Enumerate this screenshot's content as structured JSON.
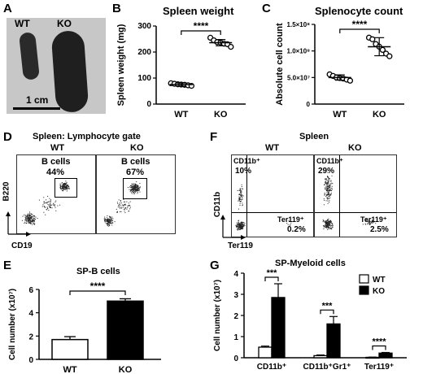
{
  "panels": {
    "A": "A",
    "B": "B",
    "C": "C",
    "D": "D",
    "E": "E",
    "F": "F",
    "G": "G"
  },
  "photo": {
    "wt": "WT",
    "ko": "KO",
    "scale": "1 cm"
  },
  "chart_data": [
    {
      "id": "B",
      "type": "scatter",
      "title": "Spleen weight",
      "xlabel": "",
      "ylabel": "Spleen weight (mg)",
      "categories": [
        "WT",
        "KO"
      ],
      "ylim": [
        0,
        300
      ],
      "yticks": [
        0,
        100,
        200,
        300
      ],
      "grid": false,
      "points": {
        "WT": [
          80,
          78,
          76,
          75,
          74,
          72,
          70
        ],
        "KO": [
          255,
          245,
          238,
          236,
          232,
          230,
          220
        ]
      },
      "means": [
        75,
        236
      ],
      "sem": [
        6,
        12
      ],
      "significance": "****"
    },
    {
      "id": "C",
      "type": "scatter",
      "title": "Splenocyte count",
      "xlabel": "",
      "ylabel": "Absolute cell count",
      "categories": [
        "WT",
        "KO"
      ],
      "ylim": [
        0,
        150000000
      ],
      "ytick_labels": [
        "0",
        "5.0×10⁷",
        "1.0×10⁸",
        "1.5×10⁸"
      ],
      "grid": false,
      "points": {
        "WT": [
          56000000,
          53000000,
          50000000,
          49000000,
          48000000,
          46000000,
          44000000
        ],
        "KO": [
          125000000,
          122000000,
          113000000,
          108000000,
          102000000,
          95000000,
          90000000
        ]
      },
      "means": [
        50000000,
        108000000
      ],
      "sem": [
        5000000,
        17000000
      ],
      "significance": "****"
    },
    {
      "id": "E",
      "type": "bar",
      "title": "SP-B cells",
      "xlabel": "",
      "ylabel": "Cell number (x10⁷)",
      "categories": [
        "WT",
        "KO"
      ],
      "values": [
        1.7,
        5.0
      ],
      "errors": [
        0.25,
        0.2
      ],
      "ylim": [
        0,
        6
      ],
      "yticks": [
        0,
        2,
        4,
        6
      ],
      "colors": [
        "#ffffff",
        "#000000"
      ],
      "significance": "****"
    },
    {
      "id": "G",
      "type": "bar",
      "title": "SP-Myeloid cells",
      "xlabel": "",
      "ylabel": "Cell number (x10⁷)",
      "categories": [
        "CD11b⁺",
        "CD11b⁺Gr1⁺",
        "Ter119⁺"
      ],
      "series": [
        {
          "name": "WT",
          "values": [
            0.5,
            0.1,
            0.02
          ],
          "errors": [
            0.05,
            0.03,
            0.01
          ],
          "color": "#ffffff"
        },
        {
          "name": "KO",
          "values": [
            2.85,
            1.6,
            0.22
          ],
          "errors": [
            0.65,
            0.35,
            0.03
          ],
          "color": "#000000"
        }
      ],
      "ylim": [
        0,
        4
      ],
      "yticks": [
        0,
        1,
        2,
        3,
        4
      ],
      "legend": "top-right",
      "significance": [
        "***",
        "***",
        "****"
      ]
    }
  ],
  "panelD": {
    "title": "Spleen: Lymphocyte gate",
    "wt": "WT",
    "ko": "KO",
    "gate_label": "B cells",
    "wt_pct": "44%",
    "ko_pct": "67%",
    "ylabel": "B220",
    "xlabel": "CD19"
  },
  "panelF": {
    "title": "Spleen",
    "wt": "WT",
    "ko": "KO",
    "cd11b_label": "CD11b⁺",
    "wt_cd11b": "10%",
    "ko_cd11b": "29%",
    "ter_label": "Ter119⁺",
    "wt_ter": "0.2%",
    "ko_ter": "2.5%",
    "ylabel": "CD11b",
    "xlabel": "Ter119"
  }
}
